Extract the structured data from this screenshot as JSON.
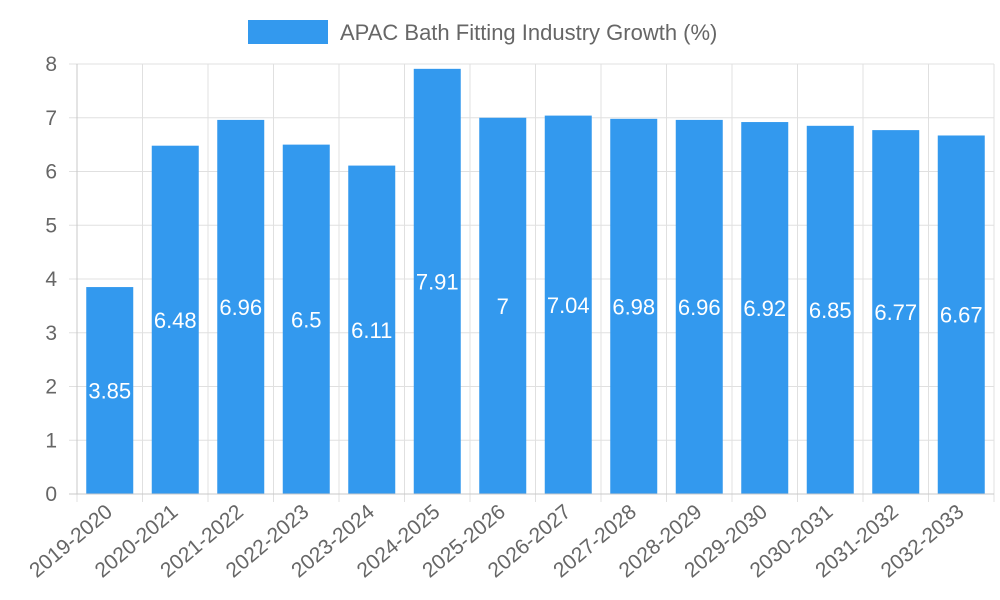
{
  "chart_data": {
    "type": "bar",
    "title": "",
    "xlabel": "",
    "ylabel": "",
    "legend": {
      "label": "APAC Bath Fitting Industry Growth (%)",
      "position": "top"
    },
    "categories": [
      "2019-2020",
      "2020-2021",
      "2021-2022",
      "2022-2023",
      "2023-2024",
      "2024-2025",
      "2025-2026",
      "2026-2027",
      "2027-2028",
      "2028-2029",
      "2029-2030",
      "2030-2031",
      "2031-2032",
      "2032-2033"
    ],
    "values": [
      3.85,
      6.48,
      6.96,
      6.5,
      6.11,
      7.91,
      7,
      7.04,
      6.98,
      6.96,
      6.92,
      6.85,
      6.77,
      6.67
    ],
    "value_labels": [
      "3.85",
      "6.48",
      "6.96",
      "6.5",
      "6.11",
      "7.91",
      "7",
      "7.04",
      "6.98",
      "6.96",
      "6.92",
      "6.85",
      "6.77",
      "6.67"
    ],
    "y_ticks": [
      "0",
      "1",
      "2",
      "3",
      "4",
      "5",
      "6",
      "7",
      "8"
    ],
    "ylim": [
      0,
      8
    ],
    "grid": true,
    "bar_color": "#3399ee"
  }
}
